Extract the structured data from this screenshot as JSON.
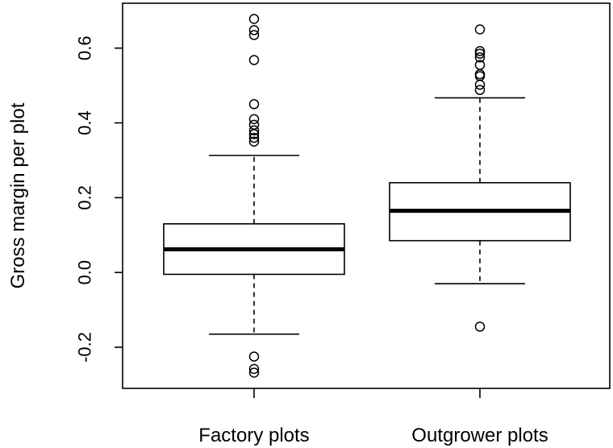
{
  "chart_data": {
    "type": "boxplot",
    "title": "",
    "xlabel": "",
    "ylabel": "Gross margin per plot",
    "ylim": [
      -0.31,
      0.72
    ],
    "yticks": [
      -0.2,
      0.0,
      0.2,
      0.4,
      0.6
    ],
    "ytick_labels": [
      "-0.2",
      "0.0",
      "0.2",
      "0.4",
      "0.6"
    ],
    "categories": [
      "Factory plots",
      "Outgrower plots"
    ],
    "grid": false,
    "legend": "none",
    "boxes": [
      {
        "category": "Factory plots",
        "whisker_low": -0.165,
        "q1": -0.005,
        "median": 0.062,
        "q3": 0.13,
        "whisker_high": 0.313,
        "outliers": [
          0.678,
          0.648,
          0.635,
          0.568,
          0.45,
          0.41,
          0.395,
          0.38,
          0.37,
          0.36,
          0.35,
          -0.225,
          -0.258,
          -0.268
        ]
      },
      {
        "category": "Outgrower plots",
        "whisker_low": -0.03,
        "q1": 0.085,
        "median": 0.165,
        "q3": 0.24,
        "whisker_high": 0.467,
        "outliers": [
          0.65,
          0.592,
          0.585,
          0.575,
          0.555,
          0.53,
          0.525,
          0.502,
          0.488,
          -0.145
        ]
      }
    ]
  }
}
